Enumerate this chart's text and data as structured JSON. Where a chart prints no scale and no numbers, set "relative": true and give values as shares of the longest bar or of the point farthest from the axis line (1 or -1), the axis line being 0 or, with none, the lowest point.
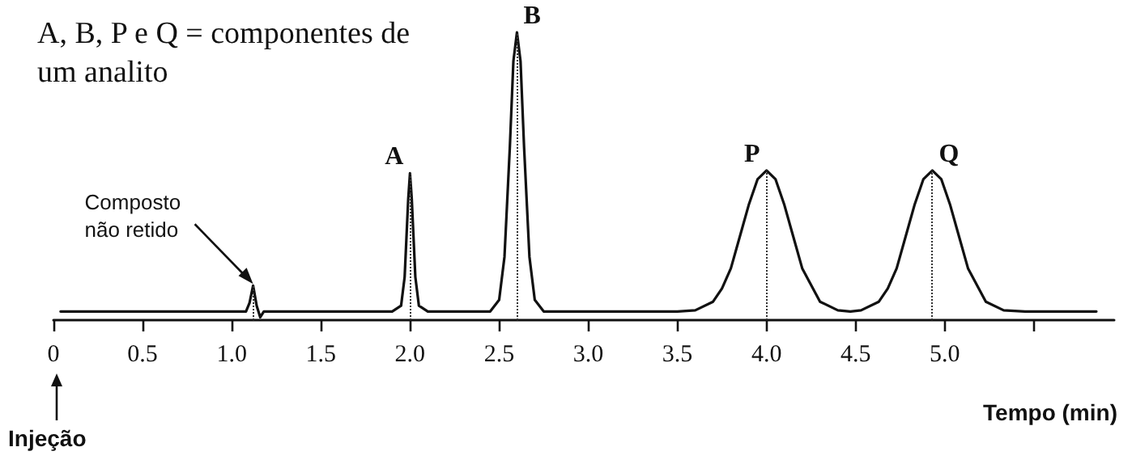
{
  "chart_data": {
    "type": "line",
    "relative": true,
    "title": "A, B, P e Q = componentes de um analito",
    "xlabel": "Tempo (min)",
    "color": "#111111",
    "marker": "none",
    "line_style": "solid",
    "grid": false,
    "x": [
      0.04,
      1.0,
      1.08,
      1.1,
      1.12,
      1.14,
      1.16,
      1.18,
      1.22,
      1.9,
      1.95,
      1.97,
      1.99,
      2.0,
      2.01,
      2.03,
      2.05,
      2.1,
      2.45,
      2.5,
      2.53,
      2.56,
      2.58,
      2.6,
      2.62,
      2.64,
      2.67,
      2.7,
      2.75,
      3.5,
      3.6,
      3.7,
      3.75,
      3.8,
      3.85,
      3.9,
      3.95,
      4.0,
      4.05,
      4.1,
      4.15,
      4.2,
      4.3,
      4.4,
      4.47,
      4.53,
      4.63,
      4.68,
      4.73,
      4.78,
      4.83,
      4.88,
      4.93,
      4.98,
      5.03,
      5.08,
      5.13,
      5.23,
      5.33,
      5.45,
      5.85
    ],
    "values": [
      0.03,
      0.03,
      0.03,
      0.06,
      0.12,
      0.05,
      0.01,
      0.03,
      0.03,
      0.03,
      0.05,
      0.15,
      0.42,
      0.51,
      0.42,
      0.15,
      0.05,
      0.03,
      0.03,
      0.07,
      0.22,
      0.6,
      0.9,
      1,
      0.9,
      0.6,
      0.22,
      0.07,
      0.03,
      0.03,
      0.034,
      0.064,
      0.11,
      0.18,
      0.29,
      0.4,
      0.49,
      0.52,
      0.49,
      0.4,
      0.29,
      0.18,
      0.064,
      0.034,
      0.03,
      0.034,
      0.064,
      0.11,
      0.18,
      0.29,
      0.4,
      0.49,
      0.52,
      0.49,
      0.4,
      0.29,
      0.18,
      0.064,
      0.034,
      0.03,
      0.03
    ],
    "xlim": [
      0,
      5.95
    ],
    "xticks": [
      0,
      0.5,
      {
        "value": 1,
        "label": "1.0"
      },
      1.5,
      {
        "value": 2,
        "label": "2.0"
      },
      2.5,
      {
        "value": 3,
        "label": "3.0"
      },
      3.5,
      {
        "value": 4,
        "label": "4.0"
      },
      4.5,
      {
        "value": 5,
        "label": "5.0"
      },
      {
        "value": 5.5,
        "label": null
      }
    ],
    "ref_lines": [
      {
        "axis": "x",
        "value": 1.12,
        "line_style": "dotted",
        "color": "#333333"
      },
      {
        "axis": "x",
        "value": 2.0,
        "line_style": "dotted",
        "color": "#333333"
      },
      {
        "axis": "x",
        "value": 2.6,
        "line_style": "dotted",
        "color": "#333333"
      },
      {
        "axis": "x",
        "value": 4.0,
        "line_style": "dotted",
        "color": "#333333"
      },
      {
        "axis": "x",
        "value": 4.93,
        "line_style": "dotted",
        "color": "#333333"
      }
    ],
    "annotations": [
      {
        "text": "A",
        "x": 2.0,
        "y": 0.51
      },
      {
        "text": "B",
        "x": 2.6,
        "y": 1
      },
      {
        "text": "P",
        "x": 4.0,
        "y": 0.52
      },
      {
        "text": "Q",
        "x": 4.93,
        "y": 0.52
      },
      {
        "text": "Composto não retido",
        "x": 1.12,
        "y": 0.12
      },
      "Injeção"
    ]
  }
}
